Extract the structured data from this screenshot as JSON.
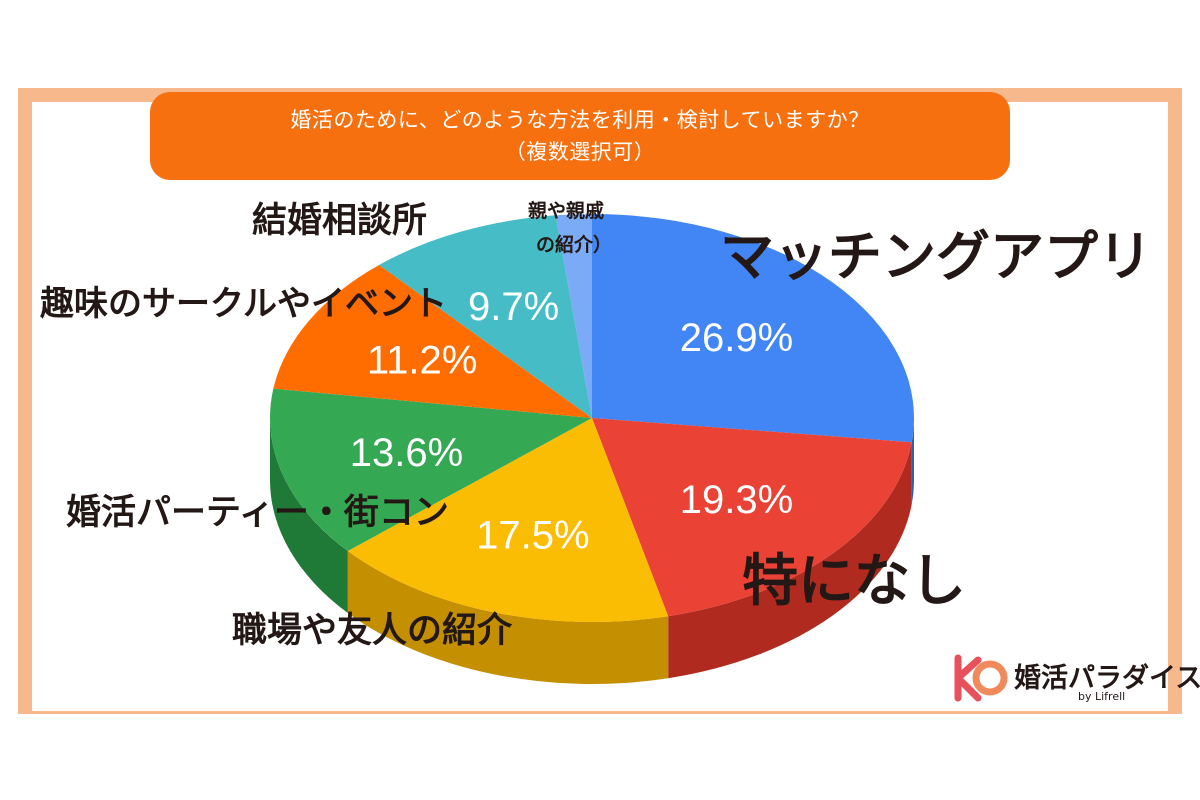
{
  "header": {
    "line1": "婚活のために、どのような方法を利用・検討していますか？",
    "line2": "（複数選択可）"
  },
  "chart_data": {
    "type": "pie",
    "title": "婚活のために、どのような方法を利用・検討していますか？（複数選択可）",
    "slices": [
      {
        "label": "マッチングアプリ",
        "value": 26.9,
        "value_label": "26.9%",
        "color": "#4285f4",
        "side": "#2a5fc0"
      },
      {
        "label": "特になし",
        "value": 19.3,
        "value_label": "19.3%",
        "color": "#ea4335",
        "side": "#b02a20"
      },
      {
        "label": "職場や友人の紹介",
        "value": 17.5,
        "value_label": "17.5%",
        "color": "#fbbc04",
        "side": "#c48f00"
      },
      {
        "label": "婚活パーティー・街コン",
        "value": 13.6,
        "value_label": "13.6%",
        "color": "#34a853",
        "side": "#1f7a38"
      },
      {
        "label": "趣味のサークルやイベント",
        "value": 11.2,
        "value_label": "11.2%",
        "color": "#ff6d01",
        "side": "#c44f00"
      },
      {
        "label": "結婚相談所",
        "value": 9.7,
        "value_label": "9.7%",
        "color": "#46bdc6",
        "side": "#2c8c94"
      },
      {
        "label_lines": [
          "親や親戚",
          "の紹介）"
        ],
        "value": 1.8,
        "value_label": "",
        "color": "#7baaf7",
        "side": "#5580c8"
      }
    ]
  },
  "logo": {
    "name": "婚活パラダイス",
    "sub": "by Lifrell",
    "mark_color_1": "#e8505b",
    "mark_color_2": "#f08a5d"
  }
}
